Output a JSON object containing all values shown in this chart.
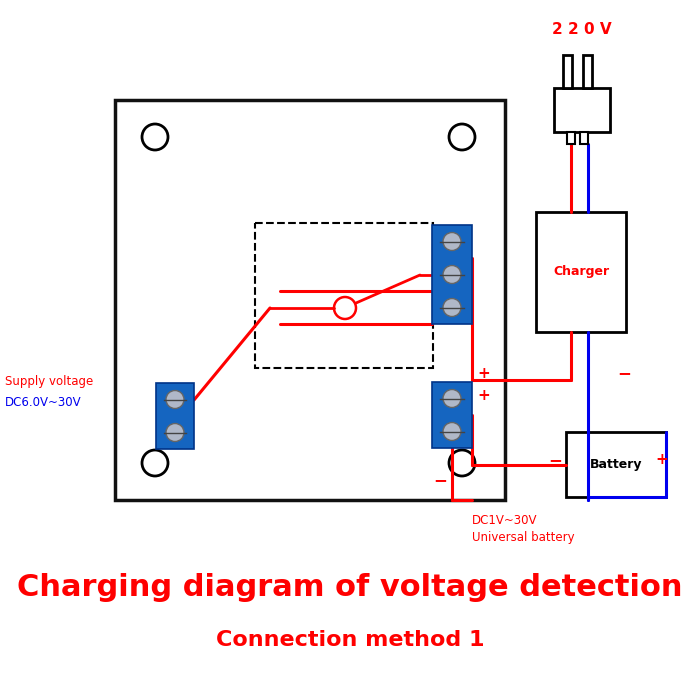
{
  "title": "Charging diagram of voltage detection",
  "subtitle": "Connection method 1",
  "title_color": "#ff0000",
  "subtitle_color": "#ff0000",
  "bg_color": "#ffffff",
  "supply_label1": "Supply voltage",
  "supply_label2": "DC6.0V~30V",
  "charger_label": "Charger",
  "voltage_label": "2 2 0 V",
  "battery_label": "Battery",
  "dc_label1": "DC1V~30V",
  "dc_label2": "Universal battery",
  "blue_color": "#1565c0",
  "red_color": "#ff0000",
  "wire_red": "#ff0000",
  "wire_blue": "#0000ee",
  "board_facecolor": "#ffffff",
  "board_edgecolor": "#111111"
}
